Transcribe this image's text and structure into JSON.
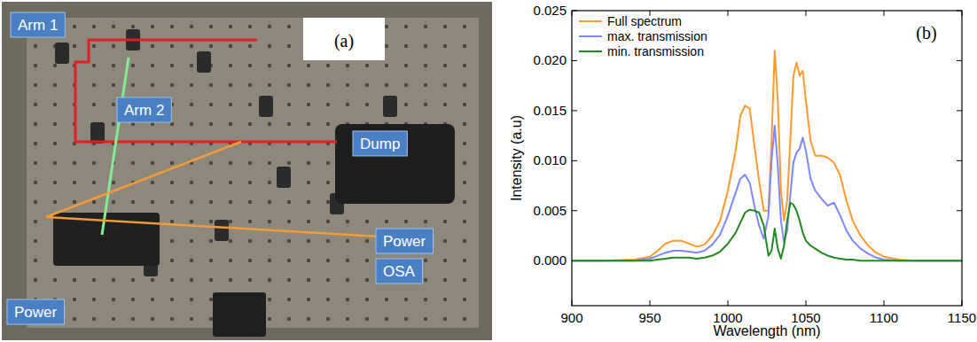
{
  "photo": {
    "panel_label": "(a)",
    "labels": [
      "Arm 1",
      "Arm 2",
      "Dump",
      "Power",
      "OSA",
      "Power"
    ]
  },
  "chart_data": {
    "type": "line",
    "panel_label": "(b)",
    "x_label": "Wavelength (nm)",
    "y_label": "Intensity (a.u)",
    "x": [
      900,
      920,
      940,
      950,
      955,
      960,
      965,
      970,
      975,
      980,
      985,
      990,
      995,
      1000,
      1005,
      1008,
      1011,
      1014,
      1017,
      1020,
      1023,
      1026,
      1028,
      1030,
      1032,
      1034,
      1036,
      1038,
      1040,
      1042,
      1044,
      1046,
      1048,
      1050,
      1053,
      1056,
      1060,
      1064,
      1068,
      1072,
      1076,
      1080,
      1085,
      1090,
      1095,
      1100,
      1110,
      1120,
      1150
    ],
    "series": [
      {
        "name": "Full spectrum",
        "color": "#ff9a2e",
        "values": [
          0,
          0,
          0.0001,
          0.0004,
          0.001,
          0.0017,
          0.002,
          0.002,
          0.0017,
          0.0014,
          0.0016,
          0.0025,
          0.004,
          0.007,
          0.011,
          0.0145,
          0.0155,
          0.0152,
          0.0115,
          0.008,
          0.005,
          0.005,
          0.012,
          0.021,
          0.016,
          0.007,
          0.004,
          0.006,
          0.012,
          0.0185,
          0.0198,
          0.0185,
          0.019,
          0.016,
          0.012,
          0.0105,
          0.0105,
          0.0103,
          0.0098,
          0.0085,
          0.006,
          0.004,
          0.0025,
          0.0015,
          0.0008,
          0.0004,
          0.0001,
          0,
          0
        ]
      },
      {
        "name": "max. transmission",
        "color": "#8088ff",
        "values": [
          0,
          0,
          0,
          0.0002,
          0.0005,
          0.0008,
          0.001,
          0.001,
          0.0009,
          0.0008,
          0.001,
          0.0016,
          0.0026,
          0.0045,
          0.0068,
          0.0082,
          0.0086,
          0.0078,
          0.0055,
          0.0035,
          0.0022,
          0.0045,
          0.01,
          0.0135,
          0.0095,
          0.004,
          0.0018,
          0.003,
          0.0065,
          0.0098,
          0.0108,
          0.0112,
          0.0123,
          0.011,
          0.0082,
          0.007,
          0.0062,
          0.0055,
          0.0058,
          0.0045,
          0.003,
          0.002,
          0.0012,
          0.0007,
          0.0003,
          0.0001,
          0,
          0,
          0
        ]
      },
      {
        "name": "min. transmission",
        "color": "#1f8a1f",
        "values": [
          0,
          0,
          0,
          0,
          0.0001,
          0.0002,
          0.0003,
          0.0003,
          0.0003,
          0.0002,
          0.0003,
          0.0005,
          0.0009,
          0.0017,
          0.0028,
          0.0038,
          0.0048,
          0.0051,
          0.005,
          0.0048,
          0.0035,
          0.0005,
          0.001,
          0.0032,
          0.0012,
          0.0002,
          0.0015,
          0.004,
          0.0058,
          0.0056,
          0.005,
          0.004,
          0.0028,
          0.002,
          0.0015,
          0.0012,
          0.0008,
          0.0005,
          0.0003,
          0.0002,
          0.0001,
          0.0001,
          0,
          0,
          0,
          0,
          0,
          0,
          0
        ]
      }
    ],
    "xlim": [
      900,
      1150
    ],
    "xticks": [
      900,
      950,
      1000,
      1050,
      1100,
      1150
    ],
    "ylim": [
      -0.0045,
      0.025
    ],
    "yticks": [
      {
        "value": 0,
        "label": "0.000"
      },
      {
        "value": 0.005,
        "label": "0.005"
      },
      {
        "value": 0.01,
        "label": "0.010"
      },
      {
        "value": 0.015,
        "label": "0.015"
      },
      {
        "value": 0.02,
        "label": "0.020"
      },
      {
        "value": 0.025,
        "label": "0.025"
      }
    ],
    "legend": "top-left",
    "grid": false
  }
}
